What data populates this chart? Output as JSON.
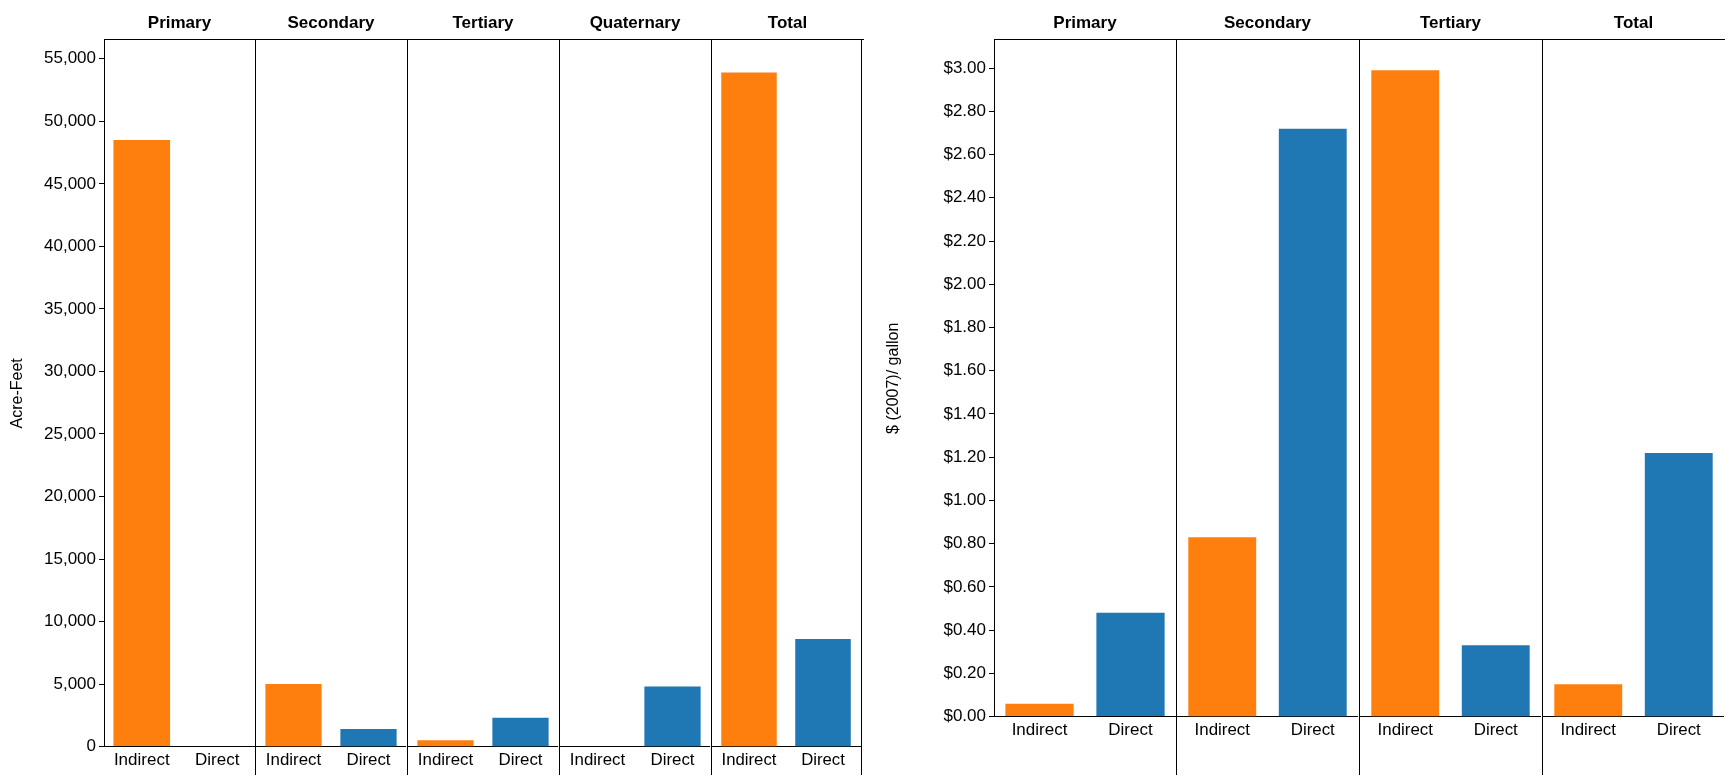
{
  "chart_data": [
    {
      "type": "bar",
      "title": "Primary",
      "ylabel": "Acre-Feet",
      "categories": [
        "Indirect",
        "Direct"
      ],
      "values": [
        48500,
        0
      ],
      "colors": [
        "#ff7f0e",
        "#1f77b4"
      ],
      "ylim": [
        0,
        56500
      ],
      "yticks": [
        0,
        {
          "value": 5000,
          "label": "5,000"
        },
        {
          "value": 10000,
          "label": "10,000"
        },
        {
          "value": 15000,
          "label": "15,000"
        },
        {
          "value": 20000,
          "label": "20,000"
        },
        {
          "value": 25000,
          "label": "25,000"
        },
        {
          "value": 30000,
          "label": "30,000"
        },
        {
          "value": 35000,
          "label": "35,000"
        },
        {
          "value": 40000,
          "label": "40,000"
        },
        {
          "value": 45000,
          "label": "45,000"
        },
        {
          "value": 50000,
          "label": "50,000"
        },
        {
          "value": 55000,
          "label": "55,000"
        }
      ],
      "grid": false,
      "legend": false
    },
    {
      "type": "bar",
      "title": "Secondary",
      "categories": [
        "Indirect",
        "Direct"
      ],
      "values": [
        5000,
        1400
      ],
      "colors": [
        "#ff7f0e",
        "#1f77b4"
      ],
      "ylim": [
        0,
        56500
      ],
      "tick_labels": "x",
      "grid": false,
      "legend": false
    },
    {
      "type": "bar",
      "title": "Tertiary",
      "categories": [
        "Indirect",
        "Direct"
      ],
      "values": [
        500,
        2300
      ],
      "colors": [
        "#ff7f0e",
        "#1f77b4"
      ],
      "ylim": [
        0,
        56500
      ],
      "tick_labels": "x",
      "grid": false,
      "legend": false
    },
    {
      "type": "bar",
      "title": "Quaternary",
      "categories": [
        "Indirect",
        "Direct"
      ],
      "values": [
        0,
        4800
      ],
      "colors": [
        "#ff7f0e",
        "#1f77b4"
      ],
      "ylim": [
        0,
        56500
      ],
      "tick_labels": "x",
      "grid": false,
      "legend": false
    },
    {
      "type": "bar",
      "title": "Total",
      "categories": [
        "Indirect",
        "Direct"
      ],
      "values": [
        53900,
        8600
      ],
      "colors": [
        "#ff7f0e",
        "#1f77b4"
      ],
      "ylim": [
        0,
        56500
      ],
      "tick_labels": "x",
      "grid": false,
      "legend": false
    },
    {
      "type": "bar",
      "title": "Primary",
      "ylabel": "$ (2007)/ gallon",
      "categories": [
        "Indirect",
        "Direct"
      ],
      "values": [
        0.06,
        0.48
      ],
      "colors": [
        "#ff7f0e",
        "#1f77b4"
      ],
      "ylim": [
        0,
        3.13
      ],
      "yticks": [
        {
          "value": 0,
          "label": "$0.00"
        },
        {
          "value": 0.2,
          "label": "$0.20"
        },
        {
          "value": 0.4,
          "label": "$0.40"
        },
        {
          "value": 0.6,
          "label": "$0.60"
        },
        {
          "value": 0.8,
          "label": "$0.80"
        },
        {
          "value": 1,
          "label": "$1.00"
        },
        {
          "value": 1.2,
          "label": "$1.20"
        },
        {
          "value": 1.4,
          "label": "$1.40"
        },
        {
          "value": 1.6,
          "label": "$1.60"
        },
        {
          "value": 1.8,
          "label": "$1.80"
        },
        {
          "value": 2,
          "label": "$2.00"
        },
        {
          "value": 2.2,
          "label": "$2.20"
        },
        {
          "value": 2.4,
          "label": "$2.40"
        },
        {
          "value": 2.6,
          "label": "$2.60"
        },
        {
          "value": 2.8,
          "label": "$2.80"
        },
        {
          "value": 3,
          "label": "$3.00"
        }
      ],
      "grid": false,
      "legend": false
    },
    {
      "type": "bar",
      "title": "Secondary",
      "categories": [
        "Indirect",
        "Direct"
      ],
      "values": [
        0.83,
        2.72
      ],
      "colors": [
        "#ff7f0e",
        "#1f77b4"
      ],
      "ylim": [
        0,
        3.13
      ],
      "tick_labels": "x",
      "grid": false,
      "legend": false
    },
    {
      "type": "bar",
      "title": "Tertiary",
      "categories": [
        "Indirect",
        "Direct"
      ],
      "values": [
        2.99,
        0.33
      ],
      "colors": [
        "#ff7f0e",
        "#1f77b4"
      ],
      "ylim": [
        0,
        3.13
      ],
      "tick_labels": "x",
      "grid": false,
      "legend": false
    },
    {
      "type": "bar",
      "title": "Total",
      "categories": [
        "Indirect",
        "Direct"
      ],
      "values": [
        0.15,
        1.22
      ],
      "colors": [
        "#ff7f0e",
        "#1f77b4"
      ],
      "ylim": [
        0,
        3.13
      ],
      "tick_labels": "x",
      "grid": false,
      "legend": false
    }
  ]
}
